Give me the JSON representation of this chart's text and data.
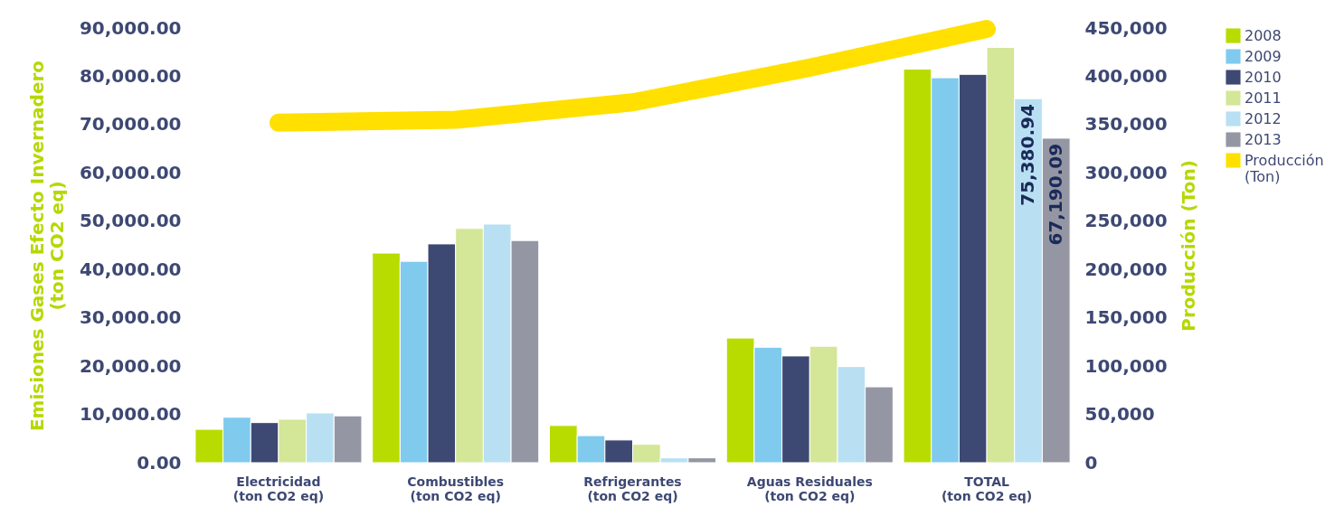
{
  "chart_data": {
    "type": "bar",
    "categories": [
      "Electricidad (ton CO2 eq)",
      "Combustibles (ton CO2 eq)",
      "Refrigerantes (ton CO2 eq)",
      "Aguas Residuales (ton CO2 eq)",
      "TOTAL (ton CO2 eq)"
    ],
    "ylabel": "Emisiones Gases Efecto Invernadero (ton CO2 eq)",
    "y2label": "Producción (Ton)",
    "series": [
      {
        "name": "2008",
        "color": "#b8dc00",
        "values": [
          6900,
          43400,
          7700,
          25800,
          81500
        ]
      },
      {
        "name": "2009",
        "color": "#80caee",
        "values": [
          9400,
          41700,
          5600,
          23900,
          79700
        ]
      },
      {
        "name": "2010",
        "color": "#3d4873",
        "values": [
          8300,
          45300,
          4700,
          22100,
          80400
        ]
      },
      {
        "name": "2011",
        "color": "#d4e697",
        "values": [
          9000,
          48500,
          3800,
          24100,
          86000
        ]
      },
      {
        "name": "2012",
        "color": "#b8e0f2",
        "values": [
          10300,
          49400,
          1000,
          19900,
          75380.94
        ],
        "value_labels": [
          null,
          null,
          null,
          null,
          "75,380.94"
        ]
      },
      {
        "name": "2013",
        "color": "#9497a3",
        "values": [
          9700,
          46000,
          1000,
          15700,
          67190.09
        ],
        "value_labels": [
          null,
          null,
          null,
          null,
          "67,190.09"
        ]
      },
      {
        "name": "Producción (Ton)",
        "type": "line",
        "axis": "y2",
        "color": "#ffe000",
        "values": [
          352000,
          355000,
          373000,
          409000,
          449000
        ]
      }
    ],
    "ylim": [
      0,
      90000
    ],
    "yticks": [
      {
        "value": 0,
        "label": "0.00"
      },
      {
        "value": 10000,
        "label": "10,000.00"
      },
      {
        "value": 20000,
        "label": "20,000.00"
      },
      {
        "value": 30000,
        "label": "30,000.00"
      },
      {
        "value": 40000,
        "label": "40,000.00"
      },
      {
        "value": 50000,
        "label": "50,000.00"
      },
      {
        "value": 60000,
        "label": "60,000.00"
      },
      {
        "value": 70000,
        "label": "70,000.00"
      },
      {
        "value": 80000,
        "label": "80,000.00"
      },
      {
        "value": 90000,
        "label": "90,000.00"
      }
    ],
    "y2lim": [
      0,
      450000
    ],
    "y2ticks": [
      {
        "value": 0,
        "label": "0"
      },
      {
        "value": 50000,
        "label": "50,000"
      },
      {
        "value": 100000,
        "label": "100,000"
      },
      {
        "value": 150000,
        "label": "150,000"
      },
      {
        "value": 200000,
        "label": "200,000"
      },
      {
        "value": 250000,
        "label": "250,000"
      },
      {
        "value": 300000,
        "label": "300,000"
      },
      {
        "value": 350000,
        "label": "350,000"
      },
      {
        "value": 400000,
        "label": "400,000"
      },
      {
        "value": 450000,
        "label": "450,000"
      }
    ],
    "grid": false,
    "legend": "right"
  }
}
